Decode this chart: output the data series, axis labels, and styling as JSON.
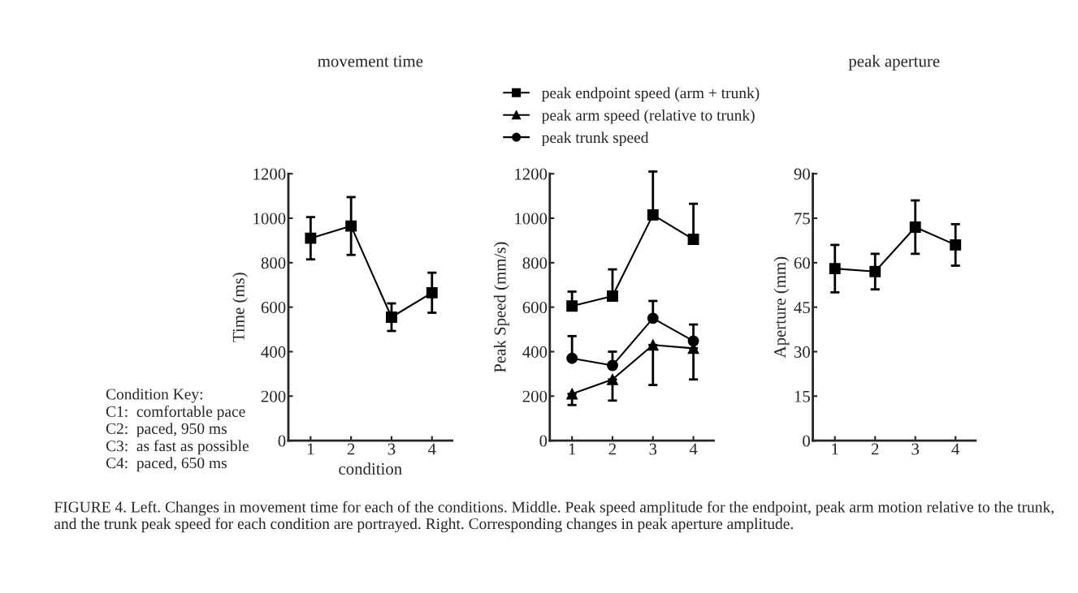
{
  "chart_data": [
    {
      "type": "line",
      "title": "movement time",
      "xlabel": "condition",
      "ylabel": "Time (ms)",
      "categories": [
        "1",
        "2",
        "3",
        "4"
      ],
      "ylim": [
        0,
        1200
      ],
      "yticks": [
        0,
        200,
        400,
        600,
        800,
        1000,
        1200
      ],
      "marker": "square",
      "grid": false,
      "legend": false,
      "series": [
        {
          "color": "#000000",
          "values": [
            910,
            965,
            555,
            665
          ],
          "errors": [
            95,
            130,
            62,
            90
          ]
        }
      ],
      "annotations": [
        "Condition Key:",
        "C1:  comfortable pace",
        "C2:  paced, 950 ms",
        "C3:  as fast as possible",
        "C4:  paced, 650 ms",
        "FIGURE 4. Left. Changes in movement time for each of the conditions. Middle. Peak speed amplitude for the endpoint, peak arm motion relative to the trunk, and the trunk peak speed for each condition are portrayed. Right. Corresponding changes in peak aperture amplitude."
      ]
    },
    {
      "type": "line",
      "ylabel": "Peak Speed (mm/s)",
      "categories": [
        "1",
        "2",
        "3",
        "4"
      ],
      "ylim": [
        0,
        1200
      ],
      "yticks": [
        0,
        200,
        400,
        600,
        800,
        1000,
        1200
      ],
      "grid": false,
      "legend": "top",
      "series": [
        {
          "name": "peak endpoint speed (arm + trunk)",
          "color": "#000000",
          "marker": "square",
          "values": [
            605,
            650,
            1015,
            905
          ],
          "errors": [
            [
              605,
              670
            ],
            [
              650,
              770
            ],
            [
              1015,
              1210
            ],
            [
              905,
              1065
            ]
          ]
        },
        {
          "name": "peak arm speed (relative to trunk)",
          "color": "#000000",
          "marker": "triangle",
          "values": [
            210,
            275,
            430,
            415
          ],
          "errors": [
            [
              160,
              210
            ],
            [
              180,
              275
            ],
            [
              250,
              430
            ],
            [
              275,
              415
            ]
          ]
        },
        {
          "name": "peak trunk speed",
          "color": "#000000",
          "marker": "circle",
          "values": [
            370,
            338,
            550,
            448
          ],
          "errors": [
            [
              370,
              470
            ],
            [
              338,
              400
            ],
            [
              550,
              628
            ],
            [
              448,
              522
            ]
          ]
        }
      ]
    },
    {
      "type": "line",
      "title": "peak aperture",
      "ylabel": "Aperture (mm)",
      "categories": [
        "1",
        "2",
        "3",
        "4"
      ],
      "ylim": [
        0,
        90
      ],
      "yticks": [
        0,
        15,
        30,
        45,
        60,
        75,
        90
      ],
      "marker": "square",
      "grid": false,
      "legend": false,
      "series": [
        {
          "color": "#000000",
          "values": [
            58,
            57,
            72,
            66
          ],
          "errors": [
            [
              50,
              66
            ],
            [
              51,
              63
            ],
            [
              63,
              81
            ],
            [
              59,
              73
            ]
          ]
        }
      ]
    }
  ]
}
